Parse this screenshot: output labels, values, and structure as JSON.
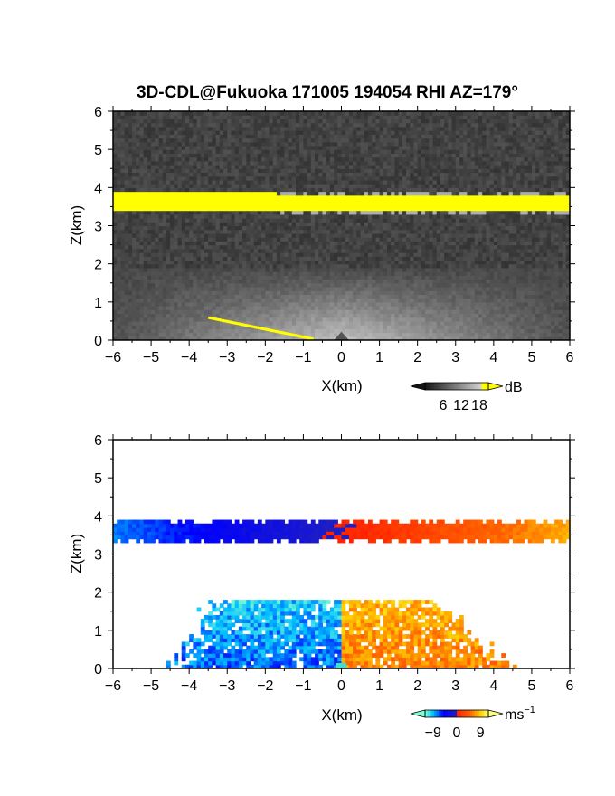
{
  "title": "3D-CDL@Fukuoka 171005 194054 RHI AZ=179°",
  "chart_data": [
    {
      "type": "heatmap",
      "panel": "top",
      "quantity": "backscatter intensity",
      "xlabel": "X(km)",
      "ylabel": "Z(km)",
      "xlim": [
        -6,
        6
      ],
      "ylim": [
        0,
        6
      ],
      "xticks": [
        "−6",
        "−5",
        "−4",
        "−3",
        "−2",
        "−1",
        "0",
        "1",
        "2",
        "3",
        "4",
        "5",
        "6"
      ],
      "yticks": [
        "0",
        "1",
        "2",
        "3",
        "4",
        "5",
        "6"
      ],
      "colorbar": {
        "unit": "dB",
        "ticks": [
          "6",
          "12",
          "18"
        ],
        "range": [
          0,
          21
        ]
      },
      "features": [
        {
          "name": "cloud layer",
          "x_range": [
            -6,
            6
          ],
          "z_range": [
            3.35,
            3.85
          ],
          "level_db": 19
        },
        {
          "name": "boundary layer aerosol",
          "x_range": [
            -5.5,
            5.5
          ],
          "z_range": [
            0,
            1.9
          ],
          "level_db": 10
        },
        {
          "name": "ground clutter",
          "x_range": [
            -3.5,
            -0.8
          ],
          "z_range": [
            0,
            0.55
          ],
          "level_db": 19
        }
      ],
      "grid": false
    },
    {
      "type": "heatmap",
      "panel": "bottom",
      "quantity": "radial velocity",
      "xlabel": "X(km)",
      "ylabel": "Z(km)",
      "xlim": [
        -6,
        6
      ],
      "ylim": [
        0,
        6
      ],
      "xticks": [
        "−6",
        "−5",
        "−4",
        "−3",
        "−2",
        "−1",
        "0",
        "1",
        "2",
        "3",
        "4",
        "5",
        "6"
      ],
      "yticks": [
        "0",
        "1",
        "2",
        "3",
        "4",
        "5",
        "6"
      ],
      "colorbar": {
        "unit": "ms",
        "unit_exp": "−1",
        "ticks": [
          "−9",
          "0",
          "9"
        ],
        "range": [
          -12,
          12
        ]
      },
      "features": [
        {
          "name": "cloud layer",
          "x_range": [
            -6,
            6
          ],
          "z_range": [
            3.3,
            3.95
          ],
          "velocity_range": [
            -8,
            8
          ]
        },
        {
          "name": "boundary layer",
          "x_range": [
            -4.2,
            4.2
          ],
          "z_range": [
            0,
            1.9
          ],
          "velocity_range": [
            -9,
            9
          ]
        }
      ],
      "grid": false
    }
  ]
}
